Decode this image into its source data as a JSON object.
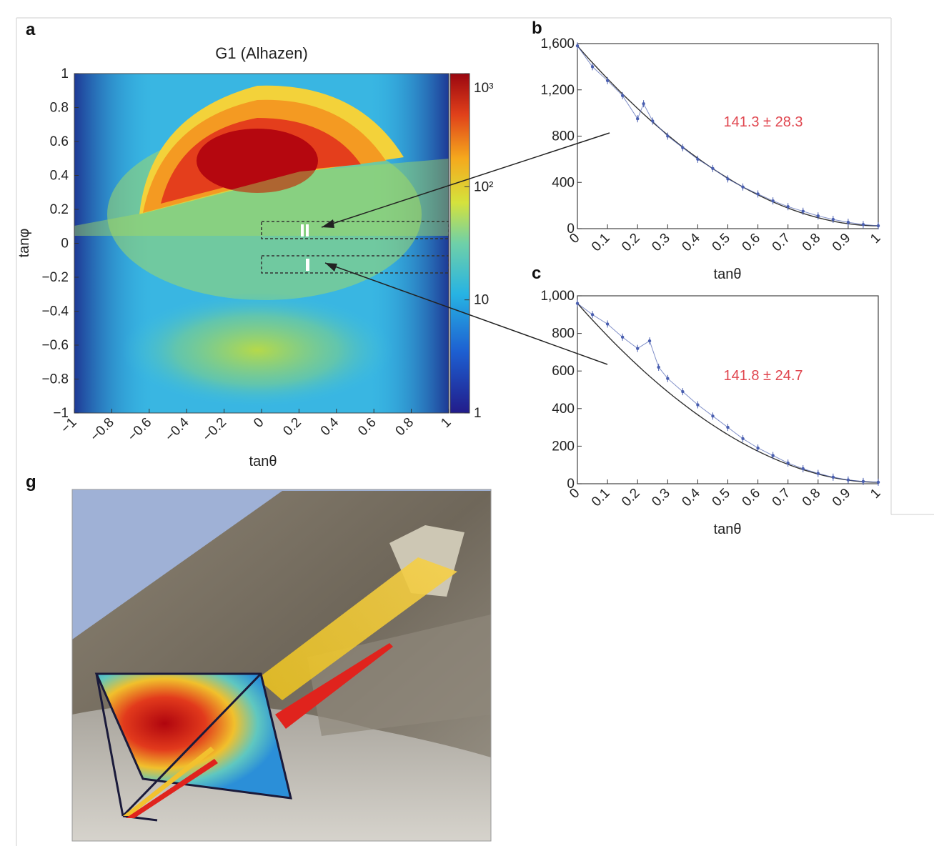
{
  "colors": {
    "fit_label": "#e0464f",
    "data_points": "#4a5fb0",
    "frame": "#9a9a9a",
    "sky": "#9fb1d6"
  },
  "chart_data": [
    {
      "panel": "a",
      "type": "heatmap",
      "title": "G1 (Alhazen)",
      "xlabel": "tanθ",
      "ylabel": "tanφ",
      "xlim": [
        -1,
        1
      ],
      "ylim": [
        -1,
        1
      ],
      "x_ticks": [
        "−1",
        "−0.8",
        "−0.6",
        "−0.4",
        "−0.2",
        "0",
        "0.2",
        "0.4",
        "0.6",
        "0.8",
        "1"
      ],
      "y_ticks": [
        "1",
        "0.8",
        "0.6",
        "0.4",
        "0.2",
        "0",
        "−0.2",
        "−0.4",
        "−0.6",
        "−0.8",
        "−1"
      ],
      "colorbar": {
        "scale": "log",
        "range": [
          1,
          1000
        ],
        "tick_labels": [
          "1",
          "10",
          "10²",
          "10³"
        ]
      },
      "regions": [
        {
          "x": [
            0,
            0.8
          ],
          "y": [
            0.03,
            0.12
          ]
        },
        {
          "x": [
            0,
            0.8
          ],
          "y": [
            -0.17,
            -0.07
          ]
        }
      ]
    },
    {
      "panel": "b",
      "type": "scatter",
      "xlabel": "tanθ",
      "ylabel": "",
      "xlim": [
        0,
        1
      ],
      "ylim": [
        0,
        1600
      ],
      "x_ticks": [
        "0",
        "0.1",
        "0.2",
        "0.3",
        "0.4",
        "0.5",
        "0.6",
        "0.7",
        "0.8",
        "0.9",
        "1"
      ],
      "y_ticks": [
        "0",
        "400",
        "800",
        "1,200",
        "1,600"
      ],
      "annotation": "141.3 ± 28.3",
      "x": [
        0.0,
        0.05,
        0.1,
        0.15,
        0.2,
        0.22,
        0.25,
        0.3,
        0.35,
        0.4,
        0.45,
        0.5,
        0.55,
        0.6,
        0.65,
        0.7,
        0.75,
        0.8,
        0.85,
        0.9,
        0.95,
        1.0
      ],
      "values": [
        1580,
        1400,
        1280,
        1150,
        950,
        1080,
        930,
        800,
        700,
        600,
        520,
        430,
        360,
        300,
        240,
        190,
        150,
        110,
        80,
        55,
        35,
        25
      ]
    },
    {
      "panel": "c",
      "type": "scatter",
      "xlabel": "tanθ",
      "ylabel": "",
      "xlim": [
        0,
        1
      ],
      "ylim": [
        0,
        1000
      ],
      "x_ticks": [
        "0",
        "0.1",
        "0.2",
        "0.3",
        "0.4",
        "0.5",
        "0.6",
        "0.7",
        "0.8",
        "0.9",
        "1"
      ],
      "y_ticks": [
        "0",
        "200",
        "400",
        "600",
        "800",
        "1,000"
      ],
      "annotation": "141.8 ± 24.7",
      "x": [
        0.0,
        0.05,
        0.1,
        0.15,
        0.2,
        0.24,
        0.27,
        0.3,
        0.35,
        0.4,
        0.45,
        0.5,
        0.55,
        0.6,
        0.65,
        0.7,
        0.75,
        0.8,
        0.85,
        0.9,
        0.95,
        1.0
      ],
      "values": [
        960,
        900,
        850,
        780,
        720,
        760,
        620,
        560,
        490,
        420,
        360,
        300,
        240,
        190,
        150,
        110,
        80,
        55,
        35,
        20,
        12,
        8
      ]
    }
  ],
  "panel_g": {
    "letter": "g"
  }
}
